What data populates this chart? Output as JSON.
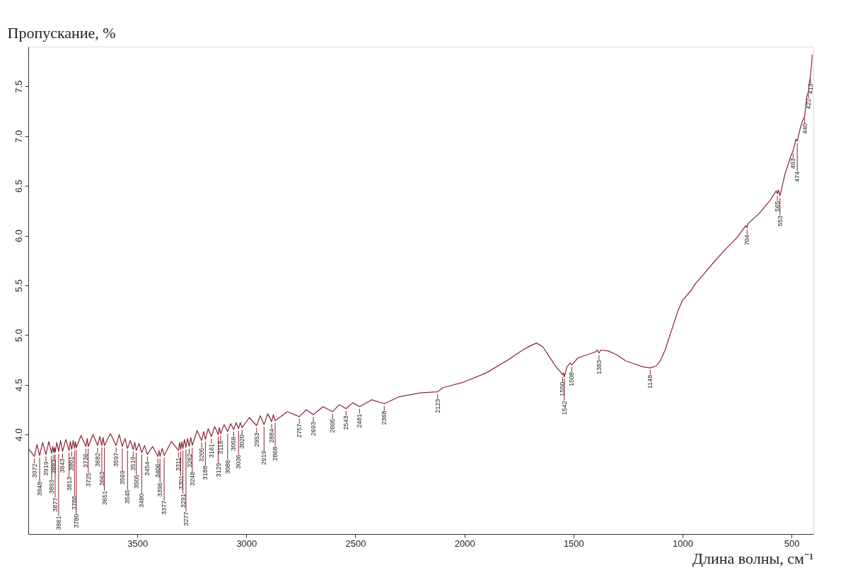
{
  "chart_data": {
    "type": "line",
    "ylabel": "Пропускание, %",
    "xlabel": "Длина волны, см⁻¹",
    "xlim": [
      4000,
      400
    ],
    "xticks": [
      3500,
      3000,
      2500,
      2000,
      1500,
      1000,
      500
    ],
    "ylim": [
      3.0,
      7.9
    ],
    "yticks": [
      {
        "value": 4.0,
        "label": "4.0"
      },
      4.5,
      {
        "value": 5.0,
        "label": "5.0"
      },
      5.5,
      {
        "value": 6.0,
        "label": "6.0"
      },
      6.5,
      {
        "value": 7.0,
        "label": "7.0"
      },
      7.5
    ],
    "grid": false,
    "marker": "none",
    "line_style": "solid",
    "series": [
      {
        "color": "#8b2332",
        "x": [
          4000,
          3972,
          3960,
          3948,
          3934,
          3919,
          3906,
          3893,
          3888,
          3883,
          3880,
          3877,
          3869,
          3861,
          3852,
          3843,
          3828,
          3813,
          3807,
          3801,
          3794,
          3788,
          3784,
          3780,
          3758,
          3736,
          3730,
          3725,
          3703,
          3682,
          3672,
          3663,
          3657,
          3651,
          3624,
          3597,
          3583,
          3569,
          3557,
          3545,
          3532,
          3519,
          3512,
          3505,
          3492,
          3480,
          3467,
          3454,
          3430,
          3406,
          3401,
          3396,
          3386,
          3377,
          3344,
          3311,
          3306,
          3301,
          3296,
          3291,
          3284,
          3277,
          3270,
          3262,
          3255,
          3248,
          3226,
          3205,
          3196,
          3188,
          3175,
          3161,
          3145,
          3129,
          3124,
          3118,
          3102,
          3086,
          3072,
          3058,
          3047,
          3036,
          3028,
          3020,
          2986,
          2953,
          2936,
          2919,
          2902,
          2884,
          2876,
          2868,
          2812,
          2757,
          2725,
          2693,
          2649,
          2605,
          2574,
          2543,
          2512,
          2481,
          2425,
          2368,
          2300,
          2200,
          2123,
          2100,
          2000,
          1900,
          1800,
          1740,
          1700,
          1670,
          1640,
          1610,
          1580,
          1560,
          1550,
          1546,
          1542,
          1530,
          1515,
          1508,
          1480,
          1440,
          1400,
          1390,
          1383,
          1375,
          1340,
          1300,
          1260,
          1220,
          1180,
          1148,
          1120,
          1100,
          1080,
          1050,
          1020,
          1000,
          960,
          940,
          900,
          850,
          800,
          750,
          710,
          704,
          700,
          650,
          600,
          570,
          565,
          560,
          553,
          530,
          500,
          493,
          480,
          474,
          460,
          450,
          440,
          430,
          422,
          418,
          413,
          405
        ],
        "values": [
          3.86,
          3.78,
          3.9,
          3.79,
          3.92,
          3.8,
          3.93,
          3.81,
          3.88,
          3.82,
          3.87,
          3.82,
          3.92,
          3.83,
          3.94,
          3.83,
          3.95,
          3.84,
          3.93,
          3.85,
          3.94,
          3.86,
          3.93,
          3.87,
          3.99,
          3.88,
          3.96,
          3.88,
          4.0,
          3.89,
          3.98,
          3.89,
          3.97,
          3.89,
          4.01,
          3.89,
          4.0,
          3.88,
          3.96,
          3.86,
          3.94,
          3.85,
          3.92,
          3.84,
          3.91,
          3.82,
          3.89,
          3.8,
          3.88,
          3.78,
          3.84,
          3.78,
          3.86,
          3.79,
          3.93,
          3.84,
          3.92,
          3.85,
          3.93,
          3.86,
          3.95,
          3.87,
          3.96,
          3.88,
          3.97,
          3.89,
          4.04,
          3.94,
          4.03,
          3.95,
          4.06,
          3.98,
          4.08,
          4.0,
          4.07,
          4.01,
          4.1,
          4.03,
          4.11,
          4.05,
          4.12,
          4.06,
          4.12,
          4.07,
          4.17,
          4.09,
          4.19,
          4.1,
          4.21,
          4.13,
          4.2,
          4.14,
          4.23,
          4.18,
          4.25,
          4.2,
          4.28,
          4.23,
          4.3,
          4.26,
          4.32,
          4.28,
          4.35,
          4.31,
          4.38,
          4.42,
          4.43,
          4.47,
          4.53,
          4.62,
          4.75,
          4.84,
          4.89,
          4.92,
          4.88,
          4.78,
          4.68,
          4.63,
          4.6,
          4.62,
          4.58,
          4.68,
          4.72,
          4.7,
          4.77,
          4.8,
          4.83,
          4.85,
          4.82,
          4.85,
          4.84,
          4.8,
          4.74,
          4.71,
          4.68,
          4.67,
          4.69,
          4.75,
          4.85,
          5.05,
          5.25,
          5.35,
          5.45,
          5.52,
          5.62,
          5.75,
          5.87,
          5.98,
          6.1,
          6.08,
          6.12,
          6.22,
          6.35,
          6.45,
          6.42,
          6.46,
          6.4,
          6.62,
          6.82,
          6.85,
          6.97,
          6.95,
          7.08,
          7.15,
          7.2,
          7.4,
          7.45,
          7.55,
          7.6,
          7.82
        ]
      }
    ],
    "annotations": [
      {
        "text": "3972",
        "x": 3972,
        "y": 3.78
      },
      {
        "text": "3948",
        "x": 3948,
        "y": 3.79
      },
      {
        "text": "3919",
        "x": 3919,
        "y": 3.8
      },
      {
        "text": "3893",
        "x": 3893,
        "y": 3.81
      },
      {
        "text": "3883",
        "x": 3883,
        "y": 3.82
      },
      {
        "text": "3877",
        "x": 3877,
        "y": 3.82
      },
      {
        "text": "3861",
        "x": 3861,
        "y": 3.83
      },
      {
        "text": "3843",
        "x": 3843,
        "y": 3.83
      },
      {
        "text": "3813",
        "x": 3813,
        "y": 3.84
      },
      {
        "text": "3801",
        "x": 3801,
        "y": 3.85
      },
      {
        "text": "3788",
        "x": 3788,
        "y": 3.86
      },
      {
        "text": "3780",
        "x": 3780,
        "y": 3.87
      },
      {
        "text": "3736",
        "x": 3736,
        "y": 3.88
      },
      {
        "text": "3725",
        "x": 3725,
        "y": 3.88
      },
      {
        "text": "3682",
        "x": 3682,
        "y": 3.89
      },
      {
        "text": "3663",
        "x": 3663,
        "y": 3.89
      },
      {
        "text": "3651",
        "x": 3651,
        "y": 3.89
      },
      {
        "text": "3597",
        "x": 3597,
        "y": 3.89
      },
      {
        "text": "3569",
        "x": 3569,
        "y": 3.88
      },
      {
        "text": "3545",
        "x": 3545,
        "y": 3.86
      },
      {
        "text": "3519",
        "x": 3519,
        "y": 3.85
      },
      {
        "text": "3505",
        "x": 3505,
        "y": 3.84
      },
      {
        "text": "3480",
        "x": 3480,
        "y": 3.82
      },
      {
        "text": "3454",
        "x": 3454,
        "y": 3.8
      },
      {
        "text": "3406",
        "x": 3406,
        "y": 3.78
      },
      {
        "text": "3396",
        "x": 3396,
        "y": 3.78
      },
      {
        "text": "3377",
        "x": 3377,
        "y": 3.79
      },
      {
        "text": "3311",
        "x": 3311,
        "y": 3.84
      },
      {
        "text": "3301",
        "x": 3301,
        "y": 3.85
      },
      {
        "text": "3291",
        "x": 3291,
        "y": 3.86
      },
      {
        "text": "3277",
        "x": 3277,
        "y": 3.87
      },
      {
        "text": "3262",
        "x": 3262,
        "y": 3.88
      },
      {
        "text": "3248",
        "x": 3248,
        "y": 3.89
      },
      {
        "text": "3205",
        "x": 3205,
        "y": 3.94
      },
      {
        "text": "3188",
        "x": 3188,
        "y": 3.95
      },
      {
        "text": "3161",
        "x": 3161,
        "y": 3.98
      },
      {
        "text": "3129",
        "x": 3129,
        "y": 4.0
      },
      {
        "text": "3118",
        "x": 3118,
        "y": 4.01
      },
      {
        "text": "3086",
        "x": 3086,
        "y": 4.03
      },
      {
        "text": "3058",
        "x": 3058,
        "y": 4.05
      },
      {
        "text": "3036",
        "x": 3036,
        "y": 4.06
      },
      {
        "text": "3020",
        "x": 3020,
        "y": 4.07
      },
      {
        "text": "2953",
        "x": 2953,
        "y": 4.09
      },
      {
        "text": "2919",
        "x": 2919,
        "y": 4.1
      },
      {
        "text": "2884",
        "x": 2884,
        "y": 4.13
      },
      {
        "text": "2868",
        "x": 2868,
        "y": 4.14
      },
      {
        "text": "2757",
        "x": 2757,
        "y": 4.18
      },
      {
        "text": "2693",
        "x": 2693,
        "y": 4.2
      },
      {
        "text": "2605",
        "x": 2605,
        "y": 4.23
      },
      {
        "text": "2543",
        "x": 2543,
        "y": 4.26
      },
      {
        "text": "2481",
        "x": 2481,
        "y": 4.28
      },
      {
        "text": "2368",
        "x": 2368,
        "y": 4.31
      },
      {
        "text": "2123",
        "x": 2123,
        "y": 4.43
      },
      {
        "text": "1550",
        "x": 1550,
        "y": 4.6
      },
      {
        "text": "1542",
        "x": 1542,
        "y": 4.58
      },
      {
        "text": "1508",
        "x": 1508,
        "y": 4.7
      },
      {
        "text": "1383",
        "x": 1383,
        "y": 4.82
      },
      {
        "text": "1148",
        "x": 1148,
        "y": 4.67
      },
      {
        "text": "704",
        "x": 704,
        "y": 6.08
      },
      {
        "text": "565",
        "x": 565,
        "y": 6.42
      },
      {
        "text": "553",
        "x": 553,
        "y": 6.4
      },
      {
        "text": "493",
        "x": 493,
        "y": 6.85
      },
      {
        "text": "474",
        "x": 474,
        "y": 6.95
      },
      {
        "text": "440",
        "x": 440,
        "y": 7.2
      },
      {
        "text": "422",
        "x": 422,
        "y": 7.45
      },
      {
        "text": "413",
        "x": 413,
        "y": 7.6
      }
    ]
  }
}
